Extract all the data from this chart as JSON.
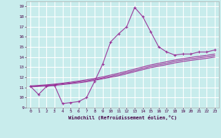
{
  "background_color": "#c8ecec",
  "grid_color": "#b8d8d8",
  "line_color": "#993399",
  "xlabel": "Windchill (Refroidissement éolien,°C)",
  "xlim": [
    -0.5,
    23.5
  ],
  "ylim": [
    9,
    19.5
  ],
  "xticks": [
    0,
    1,
    2,
    3,
    4,
    5,
    6,
    7,
    8,
    9,
    10,
    11,
    12,
    13,
    14,
    15,
    16,
    17,
    18,
    19,
    20,
    21,
    22,
    23
  ],
  "yticks": [
    9,
    10,
    11,
    12,
    13,
    14,
    15,
    16,
    17,
    18,
    19
  ],
  "line1_x": [
    0,
    1,
    2,
    3,
    4,
    5,
    6,
    7,
    8,
    9,
    10,
    11,
    12,
    13,
    14,
    15,
    16,
    17,
    18,
    19,
    20,
    21,
    22,
    23
  ],
  "line1_y": [
    11.1,
    10.3,
    11.1,
    11.2,
    9.4,
    9.5,
    9.6,
    10.0,
    11.6,
    13.3,
    15.5,
    16.3,
    17.0,
    18.9,
    18.0,
    16.5,
    15.0,
    14.5,
    14.2,
    14.3,
    14.3,
    14.5,
    14.5,
    14.7
  ],
  "line2_x": [
    0,
    1,
    2,
    3,
    4,
    5,
    6,
    7,
    8,
    9,
    10,
    11,
    12,
    13,
    14,
    15,
    16,
    17,
    18,
    19,
    20,
    21,
    22,
    23
  ],
  "line2_y": [
    11.05,
    11.1,
    11.15,
    11.2,
    11.28,
    11.36,
    11.45,
    11.55,
    11.7,
    11.85,
    12.0,
    12.15,
    12.35,
    12.55,
    12.75,
    12.95,
    13.1,
    13.25,
    13.42,
    13.55,
    13.67,
    13.77,
    13.87,
    14.0
  ],
  "line3_x": [
    0,
    1,
    2,
    3,
    4,
    5,
    6,
    7,
    8,
    9,
    10,
    11,
    12,
    13,
    14,
    15,
    16,
    17,
    18,
    19,
    20,
    21,
    22,
    23
  ],
  "line3_y": [
    11.1,
    11.15,
    11.2,
    11.27,
    11.35,
    11.44,
    11.54,
    11.65,
    11.78,
    11.93,
    12.1,
    12.27,
    12.47,
    12.67,
    12.88,
    13.08,
    13.24,
    13.39,
    13.57,
    13.7,
    13.82,
    13.92,
    14.02,
    14.15
  ],
  "line4_x": [
    0,
    1,
    2,
    3,
    4,
    5,
    6,
    7,
    8,
    9,
    10,
    11,
    12,
    13,
    14,
    15,
    16,
    17,
    18,
    19,
    20,
    21,
    22,
    23
  ],
  "line4_y": [
    11.15,
    11.2,
    11.26,
    11.33,
    11.42,
    11.52,
    11.63,
    11.75,
    11.89,
    12.04,
    12.22,
    12.4,
    12.6,
    12.81,
    13.02,
    13.22,
    13.38,
    13.54,
    13.71,
    13.84,
    13.96,
    14.07,
    14.17,
    14.3
  ]
}
